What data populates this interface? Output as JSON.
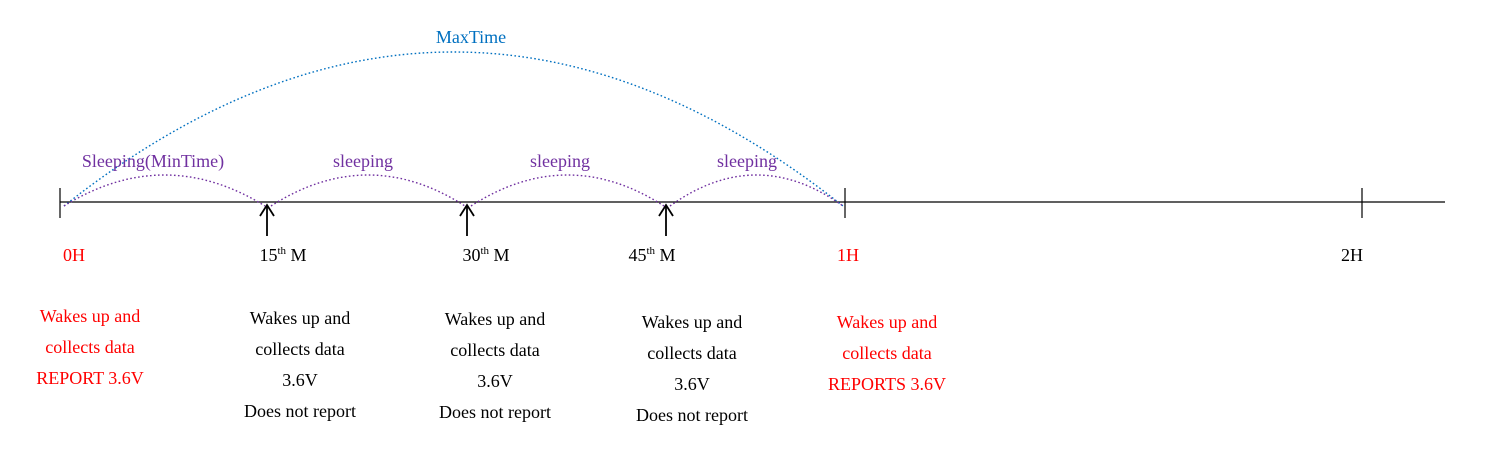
{
  "colors": {
    "red": "#ff0000",
    "black": "#000000",
    "purple": "#7030a0",
    "blue": "#0070c0"
  },
  "max_label": "MaxTime",
  "arcs": [
    {
      "label": "Sleeping(MinTime)"
    },
    {
      "label": "sleeping"
    },
    {
      "label": "sleeping"
    },
    {
      "label": "sleeping"
    }
  ],
  "ticks": [
    {
      "label": "0H",
      "sup": "",
      "suffix": "",
      "color": "red",
      "marker": "bar"
    },
    {
      "label": "15",
      "sup": "th",
      "suffix": " M",
      "color": "black",
      "marker": "arrow"
    },
    {
      "label": "30",
      "sup": "th",
      "suffix": " M",
      "color": "black",
      "marker": "arrow"
    },
    {
      "label": "45",
      "sup": "th",
      "suffix": " M",
      "color": "black",
      "marker": "arrow"
    },
    {
      "label": "1H",
      "sup": "",
      "suffix": "",
      "color": "red",
      "marker": "bar"
    },
    {
      "label": "2H",
      "sup": "",
      "suffix": "",
      "color": "black",
      "marker": "bar"
    }
  ],
  "blocks": [
    {
      "color": "red",
      "lines": [
        "Wakes up and",
        "collects data",
        "REPORT 3.6V"
      ]
    },
    {
      "color": "black",
      "lines": [
        "Wakes up and",
        "collects data",
        "3.6V",
        "Does not report"
      ]
    },
    {
      "color": "black",
      "lines": [
        "Wakes up and",
        "collects data",
        "3.6V",
        "Does not report"
      ]
    },
    {
      "color": "black",
      "lines": [
        "Wakes up and",
        "collects data",
        "3.6V",
        "Does not report"
      ]
    },
    {
      "color": "red",
      "lines": [
        "Wakes up and",
        "collects data",
        "REPORTS 3.6V"
      ]
    }
  ]
}
